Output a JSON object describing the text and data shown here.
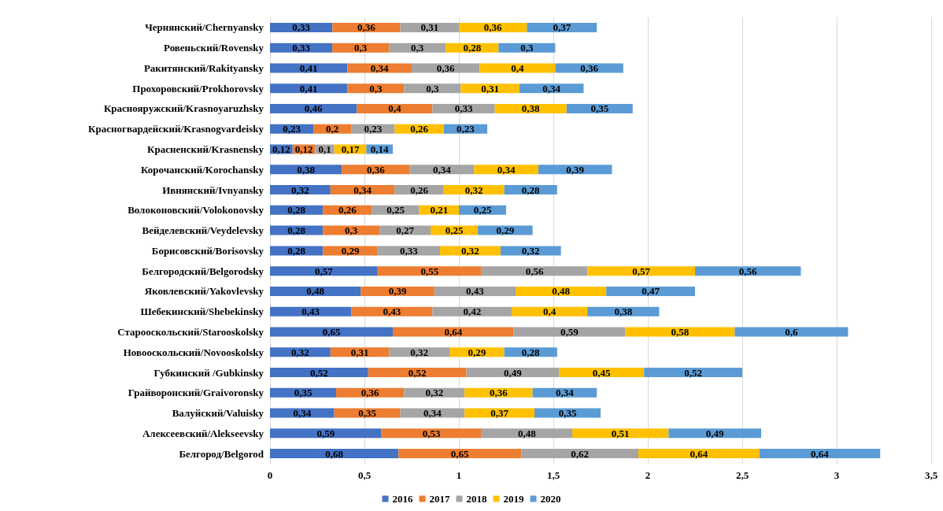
{
  "chart_data": {
    "type": "bar",
    "orientation": "horizontal",
    "stacked": true,
    "grid": "x",
    "legend": "bottom",
    "categories": [
      "Чернянский/Chernyansky",
      "Ровеньский/Rovensky",
      "Ракитянский/Rakityansky",
      "Прохоровский/Prokhorovsky",
      "Краснояружский/Krasnoyaruzhsky",
      "Красногвардейский/Krasnogvardeisky",
      "Красненский/Krasnensky",
      "Корочанский/Korochansky",
      "Ивнянский/Ivnyansky",
      "Волоконовский/Volokonovsky",
      "Вейделевский/Veydelevsky",
      "Борисовский/Borisovsky",
      "Белгородский/Belgorodsky",
      "Яковлевский/Yakovlevsky",
      "Шебекинский/Shebekinsky",
      "Старооскольский/Starooskolsky",
      "Новооскольский/Novooskolsky",
      "Губкинский /Gubkinsky",
      "Грайворонский/Graivoronsky",
      "Валуйский/Valuisky",
      "Алексеевский/Alekseevsky",
      "Белгород/Belgorod"
    ],
    "xlim": [
      0,
      3.5
    ],
    "xticks": [
      {
        "value": 0,
        "label": "0"
      },
      {
        "value": 0.5,
        "label": "0,5"
      },
      {
        "value": 1,
        "label": "1"
      },
      {
        "value": 1.5,
        "label": "1,5"
      },
      {
        "value": 2,
        "label": "2"
      },
      {
        "value": 2.5,
        "label": "2,5"
      },
      {
        "value": 3,
        "label": "3"
      },
      {
        "value": 3.5,
        "label": "3,5"
      }
    ],
    "series": [
      {
        "name": "2016",
        "color": "#4472c4",
        "values": [
          0.33,
          0.33,
          0.41,
          0.41,
          0.46,
          0.23,
          0.12,
          0.38,
          0.32,
          0.28,
          0.28,
          0.28,
          0.57,
          0.48,
          0.43,
          0.65,
          0.32,
          0.52,
          0.35,
          0.34,
          0.59,
          0.68
        ],
        "value_labels": [
          "0,33",
          "0,33",
          "0,41",
          "0,41",
          "0,46",
          "0,23",
          "0,12",
          "0,38",
          "0,32",
          "0,28",
          "0,28",
          "0,28",
          "0,57",
          "0,48",
          "0,43",
          "0,65",
          "0,32",
          "0,52",
          "0,35",
          "0,34",
          "0,59",
          "0,68"
        ]
      },
      {
        "name": "2017",
        "color": "#ed7d31",
        "values": [
          0.36,
          0.3,
          0.34,
          0.3,
          0.4,
          0.2,
          0.12,
          0.36,
          0.34,
          0.26,
          0.3,
          0.29,
          0.55,
          0.39,
          0.43,
          0.64,
          0.31,
          0.52,
          0.36,
          0.35,
          0.53,
          0.65
        ],
        "value_labels": [
          "0,36",
          "0,3",
          "0,34",
          "0,3",
          "0,4",
          "0,2",
          "0,12",
          "0,36",
          "0,34",
          "0,26",
          "0,3",
          "0,29",
          "0,55",
          "0,39",
          "0,43",
          "0,64",
          "0,31",
          "0,52",
          "0,36",
          "0,35",
          "0,53",
          "0,65"
        ]
      },
      {
        "name": "2018",
        "color": "#a5a5a5",
        "values": [
          0.31,
          0.3,
          0.36,
          0.3,
          0.33,
          0.23,
          0.1,
          0.34,
          0.26,
          0.25,
          0.27,
          0.33,
          0.56,
          0.43,
          0.42,
          0.59,
          0.32,
          0.49,
          0.32,
          0.34,
          0.48,
          0.62
        ],
        "value_labels": [
          "0,31",
          "0,3",
          "0,36",
          "0,3",
          "0,33",
          "0,23",
          "0,1",
          "0,34",
          "0,26",
          "0,25",
          "0,27",
          "0,33",
          "0,56",
          "0,43",
          "0,42",
          "0,59",
          "0,32",
          "0,49",
          "0,32",
          "0,34",
          "0,48",
          "0,62"
        ]
      },
      {
        "name": "2019",
        "color": "#ffc000",
        "values": [
          0.36,
          0.28,
          0.4,
          0.31,
          0.38,
          0.26,
          0.17,
          0.34,
          0.32,
          0.21,
          0.25,
          0.32,
          0.57,
          0.48,
          0.4,
          0.58,
          0.29,
          0.45,
          0.36,
          0.37,
          0.51,
          0.64
        ],
        "value_labels": [
          "0,36",
          "0,28",
          "0,4",
          "0,31",
          "0,38",
          "0,26",
          "0,17",
          "0,34",
          "0,32",
          "0,21",
          "0,25",
          "0,32",
          "0,57",
          "0,48",
          "0,4",
          "0,58",
          "0,29",
          "0,45",
          "0,36",
          "0,37",
          "0,51",
          "0,64"
        ]
      },
      {
        "name": "2020",
        "color": "#5b9bd5",
        "values": [
          0.37,
          0.3,
          0.36,
          0.34,
          0.35,
          0.23,
          0.14,
          0.39,
          0.28,
          0.25,
          0.29,
          0.32,
          0.56,
          0.47,
          0.38,
          0.6,
          0.28,
          0.52,
          0.34,
          0.35,
          0.49,
          0.64
        ],
        "value_labels": [
          "0,37",
          "0,3",
          "0,36",
          "0,34",
          "0,35",
          "0,23",
          "0,14",
          "0,39",
          "0,28",
          "0,25",
          "0,29",
          "0,32",
          "0,56",
          "0,47",
          "0,38",
          "0,6",
          "0,28",
          "0,52",
          "0,34",
          "0,35",
          "0,49",
          "0,64"
        ]
      }
    ]
  }
}
